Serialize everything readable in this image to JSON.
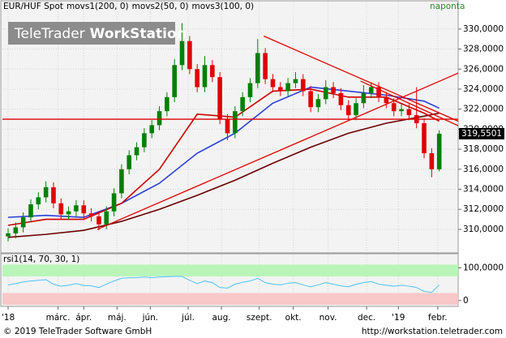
{
  "header": {
    "logo_main": "TeleTrader",
    "logo_bold": "WorkStation",
    "frequency": "naponta"
  },
  "footer": {
    "copyright": "© 2019 TeleTrader Software GmbH",
    "url": "http://workstation.teletrader.com"
  },
  "chart_data": [
    {
      "type": "candlestick",
      "name": "EUR/HUF Spot",
      "up_color": "#008000",
      "down_color": "#e00000",
      "open": [
        309.3,
        309.6,
        310.2,
        311.2,
        312.5,
        313.2,
        314.2,
        312.6,
        311.5,
        311.8,
        312.4,
        311.6,
        311.3,
        310.5,
        311.8,
        313.6,
        316.0,
        317.4,
        318.2,
        319.6,
        320.4,
        321.8,
        323.2,
        326.4,
        328.8,
        326.0,
        324.2,
        326.4,
        325.2,
        321.0,
        319.6,
        321.8,
        323.2,
        324.6,
        327.6,
        325.0,
        324.2,
        323.8,
        324.6,
        325.0,
        323.8,
        322.2,
        323.0,
        324.2,
        323.6,
        322.4,
        321.4,
        322.6,
        323.6,
        324.2,
        323.2,
        322.6,
        321.8,
        322.0,
        321.4,
        320.6,
        317.6,
        316.0
      ],
      "high": [
        310.1,
        310.7,
        311.7,
        313.0,
        313.7,
        314.8,
        314.7,
        313.1,
        312.3,
        312.9,
        312.9,
        312.1,
        311.8,
        312.3,
        314.1,
        316.5,
        317.9,
        318.7,
        320.1,
        320.9,
        322.3,
        323.7,
        327.0,
        330.6,
        329.3,
        326.5,
        327.3,
        326.9,
        325.7,
        321.5,
        322.3,
        323.7,
        325.1,
        329.0,
        328.1,
        325.5,
        324.7,
        325.1,
        325.7,
        325.5,
        324.3,
        323.5,
        324.9,
        324.7,
        324.1,
        322.9,
        323.1,
        324.4,
        324.7,
        324.7,
        323.7,
        323.1,
        322.5,
        322.5,
        324.2,
        321.1,
        318.1,
        319.9
      ],
      "low": [
        308.8,
        309.1,
        309.7,
        310.7,
        312.0,
        312.7,
        312.1,
        311.0,
        311.0,
        311.3,
        311.1,
        310.8,
        309.9,
        310.0,
        311.3,
        313.1,
        315.5,
        316.9,
        317.7,
        319.1,
        319.9,
        321.3,
        322.7,
        325.9,
        325.5,
        323.7,
        323.7,
        324.7,
        320.5,
        318.9,
        319.1,
        321.3,
        322.7,
        324.1,
        324.5,
        323.7,
        323.3,
        323.3,
        324.1,
        323.3,
        321.7,
        321.7,
        322.5,
        323.1,
        321.9,
        320.9,
        320.9,
        322.1,
        323.1,
        322.7,
        322.1,
        321.3,
        321.3,
        320.9,
        320.1,
        317.1,
        315.2,
        315.8
      ],
      "close": [
        309.6,
        310.2,
        311.2,
        312.5,
        313.2,
        314.2,
        312.6,
        311.5,
        311.8,
        312.4,
        311.6,
        311.3,
        310.5,
        311.8,
        313.6,
        316.0,
        317.4,
        318.2,
        319.6,
        320.4,
        321.8,
        323.2,
        326.4,
        328.8,
        326.0,
        324.2,
        326.4,
        325.2,
        321.0,
        319.6,
        321.8,
        323.2,
        324.6,
        327.6,
        325.0,
        324.2,
        323.8,
        324.6,
        325.0,
        323.8,
        322.2,
        323.0,
        324.2,
        323.6,
        322.4,
        321.4,
        322.6,
        323.6,
        324.2,
        323.2,
        322.6,
        321.8,
        322.0,
        321.4,
        320.6,
        317.6,
        316.0,
        319.5501
      ],
      "last_price": {
        "value": 319.5501,
        "label": "319,5501"
      },
      "overlays": [
        {
          "name": "movs1(200, 0)",
          "color": "#6b0000",
          "x": [
            0,
            5,
            10,
            15,
            20,
            25,
            30,
            35,
            40,
            45,
            50,
            55,
            57
          ],
          "values": [
            309.2,
            309.5,
            309.9,
            310.8,
            312.0,
            313.4,
            314.9,
            316.6,
            318.2,
            319.6,
            320.6,
            321.3,
            321.6
          ]
        },
        {
          "name": "movs2(50, 0)",
          "color": "#2b3fd8",
          "x": [
            0,
            5,
            10,
            15,
            20,
            25,
            30,
            35,
            40,
            45,
            50,
            55,
            57
          ],
          "values": [
            311.2,
            311.4,
            311.2,
            312.6,
            314.6,
            317.6,
            319.6,
            322.6,
            324.2,
            323.8,
            323.4,
            322.8,
            322.1
          ]
        },
        {
          "name": "movs3(100, 0)",
          "color": "#d00000",
          "x": [
            0,
            5,
            10,
            15,
            20,
            25,
            30,
            35,
            40,
            45,
            50,
            55,
            57
          ],
          "values": [
            310.4,
            311.0,
            311.0,
            312.6,
            316.0,
            321.5,
            321.2,
            323.8,
            324.0,
            323.2,
            323.2,
            321.6,
            320.8
          ]
        }
      ],
      "trendlines": {
        "color": "#e00000",
        "lines": [
          {
            "x": [
              33.8,
              59.5
            ],
            "values": [
              329.3,
              320.8
            ]
          },
          {
            "x": [
              -0.75,
              59.5
            ],
            "values": [
              321.0,
              321.0
            ]
          },
          {
            "x": [
              11.8,
              59.5
            ],
            "values": [
              310.0,
              325.6
            ]
          },
          {
            "x": [
              46.6,
              59.5
            ],
            "values": [
              324.8,
              320.35
            ]
          }
        ]
      },
      "xlim": [
        -0.75,
        59.5
      ],
      "xticks": [
        {
          "value": 0,
          "label": "'18"
        },
        {
          "value": 6.6,
          "label": "márc."
        },
        {
          "value": 10,
          "label": "ápr."
        },
        {
          "value": 14.4,
          "label": "máj."
        },
        {
          "value": 18.8,
          "label": "jún."
        },
        {
          "value": 23.8,
          "label": "júl."
        },
        {
          "value": 28.2,
          "label": "aug."
        },
        {
          "value": 33.2,
          "label": "szept."
        },
        {
          "value": 37.7,
          "label": "okt."
        },
        {
          "value": 42.3,
          "label": "nov."
        },
        {
          "value": 47.4,
          "label": "dec."
        },
        {
          "value": 51.6,
          "label": "'19"
        },
        {
          "value": 56.8,
          "label": "febr."
        }
      ],
      "ylim": [
        307.65,
        332.9
      ],
      "yticks": [
        {
          "value": 310,
          "label": "310,0000"
        },
        {
          "value": 312,
          "label": "312,0000"
        },
        {
          "value": 314,
          "label": "314,0000"
        },
        {
          "value": 316,
          "label": "316,0000"
        },
        {
          "value": 318,
          "label": "318,0000"
        },
        {
          "value": 320,
          "label": "320,0000"
        },
        {
          "value": 322,
          "label": "322,0000"
        },
        {
          "value": 324,
          "label": "324,0000"
        },
        {
          "value": 326,
          "label": "326,0000"
        },
        {
          "value": 328,
          "label": "328,0000"
        },
        {
          "value": 330,
          "label": "330,0000"
        }
      ],
      "grid": true
    },
    {
      "type": "line",
      "title": "rsi1(14, 70, 30, 1)",
      "color": "#4fc3f7",
      "values": [
        48,
        52,
        57,
        60,
        62,
        64,
        50,
        44,
        47,
        52,
        46,
        45,
        40,
        50,
        60,
        68,
        70,
        70,
        72,
        70,
        72,
        73,
        74,
        74,
        62,
        52,
        60,
        55,
        40,
        38,
        50,
        56,
        60,
        68,
        55,
        50,
        48,
        53,
        55,
        48,
        42,
        48,
        55,
        50,
        45,
        42,
        50,
        55,
        58,
        50,
        47,
        44,
        47,
        44,
        40,
        28,
        25,
        48
      ],
      "bands": [
        {
          "range": [
            74,
            110
          ],
          "color": "#b9f5b9"
        },
        {
          "range": [
            -13,
            23
          ],
          "color": "#f8c8c8"
        }
      ],
      "ylim": [
        -18,
        143.6
      ],
      "yticks": [
        0,
        {
          "value": 100,
          "label": "100,0000"
        }
      ]
    }
  ]
}
